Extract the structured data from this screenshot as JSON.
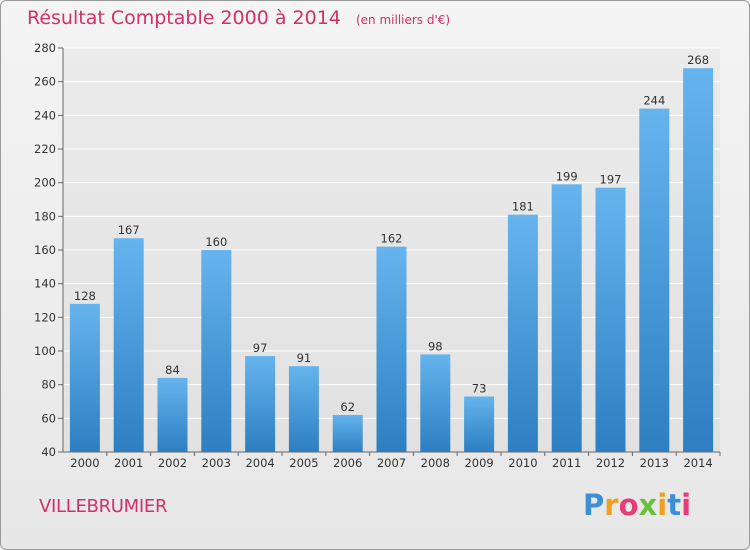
{
  "header": {
    "title": "Résultat Comptable 2000 à 2014",
    "unit": "(en milliers d'€)"
  },
  "place": "VILLEBRUMIER",
  "brand": {
    "name": "Proxiti",
    "letters": [
      "P",
      "r",
      "o",
      "x",
      "i",
      "t",
      "i"
    ],
    "colors": [
      "#3d8ed8",
      "#f0a020",
      "#e83c78",
      "#6cbf3c",
      "#f0a020",
      "#3d8ed8",
      "#e83c78"
    ]
  },
  "colors": {
    "bar_light": "#66b4ee",
    "bar_dark": "#2d7fc2",
    "grid": "#ffffff",
    "axis": "#666666",
    "accent": "#d1306b"
  },
  "chart_data": {
    "type": "bar",
    "title": "Résultat Comptable 2000 à 2014",
    "subtitle": "(en milliers d'€)",
    "xlabel": "",
    "ylabel": "",
    "categories": [
      "2000",
      "2001",
      "2002",
      "2003",
      "2004",
      "2005",
      "2006",
      "2007",
      "2008",
      "2009",
      "2010",
      "2011",
      "2012",
      "2013",
      "2014"
    ],
    "values": [
      128,
      167,
      84,
      160,
      97,
      91,
      62,
      162,
      98,
      73,
      181,
      199,
      197,
      244,
      268
    ],
    "ylim": [
      40,
      280
    ],
    "yticks": [
      40,
      60,
      80,
      100,
      120,
      140,
      160,
      180,
      200,
      220,
      240,
      260,
      280
    ],
    "grid": true,
    "legend": "none"
  }
}
